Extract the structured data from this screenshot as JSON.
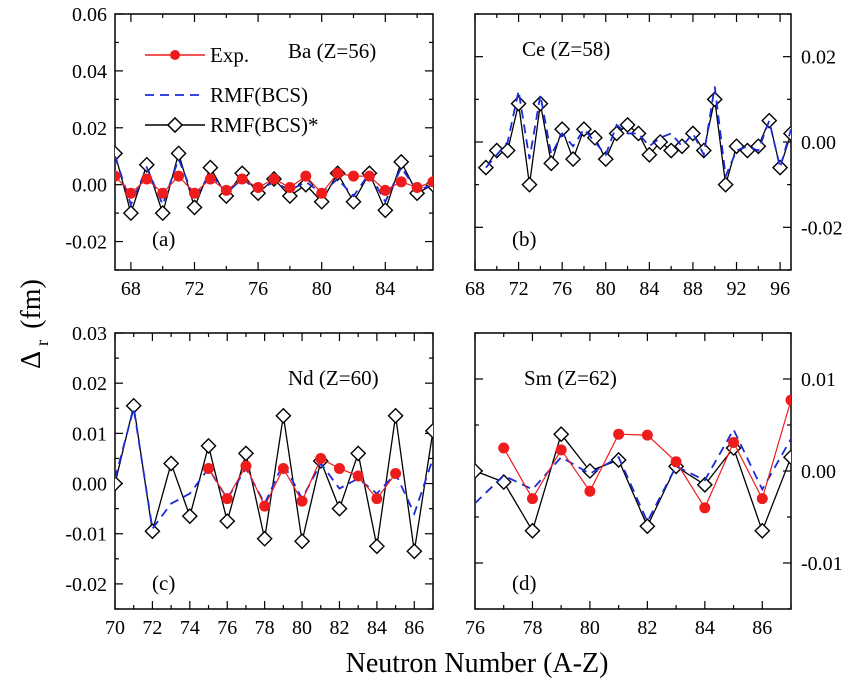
{
  "figure": {
    "xlabel": "Neutron Number (A-Z)",
    "ylabel_main": "Δ",
    "ylabel_sub": "r",
    "ylabel_unit": "(fm)",
    "colors": {
      "exp": "#ee1c1c",
      "rmf": "#1a2bd6",
      "rmf_star": "#000000",
      "frame": "#000000"
    }
  },
  "legend": {
    "entries": [
      {
        "label": "Exp.",
        "series": "exp"
      },
      {
        "label": "RMF(BCS)",
        "series": "rmf"
      },
      {
        "label": "RMF(BCS)*",
        "series": "rmf_star"
      }
    ]
  },
  "chart_data": [
    {
      "type": "line",
      "panel": "(a)",
      "title": "Ba (Z=56)",
      "xlim": [
        67,
        87
      ],
      "ylim": [
        -0.03,
        0.06
      ],
      "xticks": [
        68,
        72,
        76,
        80,
        84
      ],
      "yticks": [
        -0.02,
        0.0,
        0.02,
        0.04,
        0.06
      ],
      "ytick_labels": [
        "-0.02",
        "0.00",
        "0.02",
        "0.04",
        "0.06"
      ],
      "yaxis_side": "left",
      "series": [
        {
          "name": "Exp.",
          "key": "exp",
          "x": [
            67,
            68,
            69,
            70,
            71,
            72,
            73,
            74,
            75,
            76,
            77,
            78,
            79,
            80,
            81,
            82,
            83,
            84,
            85,
            86,
            87
          ],
          "y": [
            0.003,
            -0.003,
            0.002,
            -0.003,
            0.003,
            -0.003,
            0.002,
            -0.002,
            0.002,
            -0.001,
            0.002,
            -0.001,
            0.003,
            -0.003,
            0.004,
            0.003,
            0.003,
            -0.002,
            0.001,
            -0.001,
            0.001
          ]
        },
        {
          "name": "RMF(BCS)",
          "key": "rmf",
          "x": [
            67,
            68,
            69,
            70,
            71,
            72,
            73,
            74,
            75,
            76,
            77,
            78,
            79,
            80,
            81,
            82,
            83,
            84,
            85,
            86,
            87
          ],
          "y": [
            0.01,
            -0.007,
            0.006,
            -0.007,
            0.009,
            -0.005,
            0.004,
            -0.003,
            0.002,
            -0.002,
            0.001,
            -0.002,
            0.001,
            -0.003,
            0.002,
            -0.004,
            0.004,
            -0.006,
            0.006,
            -0.002,
            0.0
          ]
        },
        {
          "name": "RMF(BCS)*",
          "key": "rmf_star",
          "x": [
            67,
            68,
            69,
            70,
            71,
            72,
            73,
            74,
            75,
            76,
            77,
            78,
            79,
            80,
            81,
            82,
            83,
            84,
            85,
            86,
            87
          ],
          "y": [
            0.011,
            -0.01,
            0.007,
            -0.01,
            0.011,
            -0.008,
            0.006,
            -0.004,
            0.004,
            -0.003,
            0.002,
            -0.004,
            0.0,
            -0.006,
            0.004,
            -0.006,
            0.004,
            -0.009,
            0.008,
            -0.003,
            0.0
          ]
        }
      ]
    },
    {
      "type": "line",
      "panel": "(b)",
      "title": "Ce (Z=58)",
      "xlim": [
        68,
        97
      ],
      "ylim": [
        -0.03,
        0.03
      ],
      "xticks": [
        68,
        72,
        76,
        80,
        84,
        88,
        92,
        96
      ],
      "yticks": [
        -0.02,
        0.0,
        0.02
      ],
      "ytick_labels": [
        "-0.02",
        "0.00",
        "0.02"
      ],
      "yaxis_side": "right",
      "series": [
        {
          "name": "RMF(BCS)",
          "key": "rmf",
          "x": [
            69,
            70,
            71,
            72,
            73,
            74,
            75,
            76,
            77,
            78,
            79,
            80,
            81,
            82,
            83,
            84,
            85,
            86,
            87,
            88,
            89,
            90,
            91,
            92,
            93,
            94,
            95,
            96,
            97
          ],
          "y": [
            -0.006,
            -0.003,
            0.0,
            0.012,
            -0.004,
            0.011,
            -0.003,
            0.002,
            -0.001,
            0.003,
            0.0,
            -0.003,
            0.004,
            0.002,
            0.002,
            -0.001,
            0.001,
            0.002,
            -0.001,
            0.002,
            -0.003,
            0.013,
            -0.008,
            -0.002,
            -0.001,
            -0.002,
            0.005,
            -0.006,
            0.003
          ]
        },
        {
          "name": "RMF(BCS)*",
          "key": "rmf_star",
          "x": [
            69,
            70,
            71,
            72,
            73,
            74,
            75,
            76,
            77,
            78,
            79,
            80,
            81,
            82,
            83,
            84,
            85,
            86,
            87,
            88,
            89,
            90,
            91,
            92,
            93,
            94,
            95,
            96,
            97
          ],
          "y": [
            -0.006,
            -0.002,
            -0.002,
            0.009,
            -0.01,
            0.009,
            -0.005,
            0.003,
            -0.004,
            0.003,
            0.001,
            -0.004,
            0.002,
            0.004,
            0.002,
            -0.003,
            0.0,
            -0.002,
            -0.001,
            0.002,
            -0.002,
            0.01,
            -0.01,
            -0.001,
            -0.002,
            -0.001,
            0.005,
            -0.006,
            0.002
          ]
        }
      ]
    },
    {
      "type": "line",
      "panel": "(c)",
      "title": "Nd (Z=60)",
      "xlim": [
        70,
        87
      ],
      "ylim": [
        -0.025,
        0.03
      ],
      "xticks": [
        70,
        72,
        74,
        76,
        78,
        80,
        82,
        84,
        86
      ],
      "yticks": [
        -0.02,
        -0.01,
        0.0,
        0.01,
        0.02,
        0.03
      ],
      "ytick_labels": [
        "-0.02",
        "-0.01",
        "0.00",
        "0.01",
        "0.02",
        "0.03"
      ],
      "yaxis_side": "left",
      "series": [
        {
          "name": "Exp.",
          "key": "exp",
          "x": [
            75,
            76,
            77,
            78,
            79,
            80,
            81,
            82,
            83,
            84,
            85
          ],
          "y": [
            0.003,
            -0.003,
            0.0035,
            -0.0045,
            0.003,
            -0.0035,
            0.005,
            0.003,
            0.0015,
            -0.003,
            0.002
          ]
        },
        {
          "name": "RMF(BCS)",
          "key": "rmf",
          "x": [
            70,
            71,
            72,
            73,
            74,
            75,
            76,
            77,
            78,
            79,
            80,
            81,
            82,
            83,
            84,
            85,
            86,
            87
          ],
          "y": [
            0.001,
            0.015,
            -0.009,
            -0.004,
            -0.002,
            0.003,
            -0.003,
            0.003,
            -0.004,
            0.004,
            -0.003,
            0.004,
            -0.001,
            0.001,
            -0.002,
            0.002,
            -0.006,
            0.005
          ]
        },
        {
          "name": "RMF(BCS)*",
          "key": "rmf_star",
          "x": [
            70,
            71,
            72,
            73,
            74,
            75,
            76,
            77,
            78,
            79,
            80,
            81,
            82,
            83,
            84,
            85,
            86,
            87
          ],
          "y": [
            0.0,
            0.0155,
            -0.0095,
            0.004,
            -0.0065,
            0.0075,
            -0.0075,
            0.006,
            -0.011,
            0.0135,
            -0.0115,
            0.0045,
            -0.005,
            0.006,
            -0.0125,
            0.0135,
            -0.0135,
            0.0105
          ]
        }
      ]
    },
    {
      "type": "line",
      "panel": "(d)",
      "title": "Sm (Z=62)",
      "xlim": [
        76,
        87
      ],
      "ylim": [
        -0.015,
        0.015
      ],
      "xticks": [
        76,
        78,
        80,
        82,
        84,
        86
      ],
      "yticks": [
        -0.01,
        0.0,
        0.01
      ],
      "ytick_labels": [
        "-0.01",
        "0.00",
        "0.01"
      ],
      "yaxis_side": "right",
      "series": [
        {
          "name": "Exp.",
          "key": "exp",
          "x": [
            77,
            78,
            79,
            80,
            81,
            82,
            83,
            84,
            85,
            86,
            87
          ],
          "y": [
            0.0025,
            -0.003,
            0.0023,
            -0.0022,
            0.004,
            0.0039,
            0.001,
            -0.004,
            0.0031,
            -0.003,
            0.0077
          ]
        },
        {
          "name": "RMF(BCS)",
          "key": "rmf",
          "x": [
            76,
            77,
            78,
            79,
            80,
            81,
            82,
            83,
            84,
            85,
            86,
            87
          ],
          "y": [
            -0.0035,
            -0.0005,
            -0.002,
            0.0015,
            -0.0003,
            0.0015,
            -0.0055,
            0.0005,
            -0.001,
            0.0045,
            -0.002,
            0.0035
          ]
        },
        {
          "name": "RMF(BCS)*",
          "key": "rmf_star",
          "x": [
            76,
            77,
            78,
            79,
            80,
            81,
            82,
            83,
            84,
            85,
            86,
            87
          ],
          "y": [
            0.0,
            -0.0012,
            -0.0065,
            0.004,
            0.0,
            0.0012,
            -0.006,
            0.0005,
            -0.0015,
            0.0025,
            -0.0065,
            0.0015
          ]
        }
      ]
    }
  ]
}
